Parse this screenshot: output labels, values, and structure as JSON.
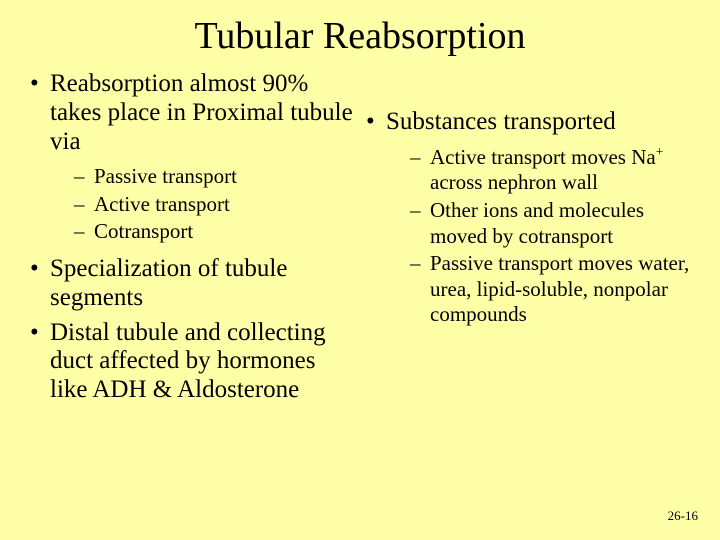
{
  "background_color": "#ffffa8",
  "text_color": "#000000",
  "font_family": "Times New Roman",
  "title": "Tubular Reabsorption",
  "title_fontsize": 38,
  "body_fontsize": 25,
  "sub_fontsize": 21,
  "left": {
    "items": [
      {
        "text": "Reabsorption almost 90% takes place in Proximal tubule via",
        "sub": [
          "Passive transport",
          "Active transport",
          "Cotransport"
        ]
      },
      {
        "text": "Specialization of tubule segments"
      },
      {
        "text": "Distal tubule and collecting duct affected by hormones like ADH & Aldosterone"
      }
    ]
  },
  "right": {
    "items": [
      {
        "text": "Substances transported",
        "sub": [
          {
            "pre": "Active transport moves Na",
            "sup": "+",
            "post": " across nephron wall"
          },
          "Other ions and molecules moved by cotransport",
          "Passive transport moves water, urea, lipid-soluble, nonpolar compounds"
        ]
      }
    ]
  },
  "page_number": "26-16"
}
